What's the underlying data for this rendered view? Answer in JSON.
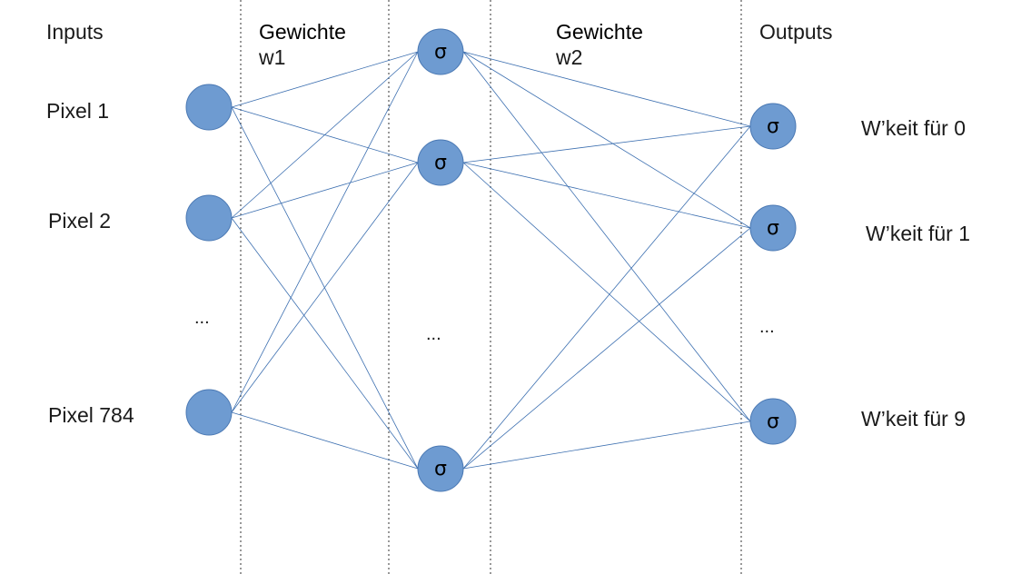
{
  "headers": {
    "inputs": "Inputs",
    "weights1_title": "Gewichte",
    "weights1_sub": "w1",
    "weights2_title": "Gewichte",
    "weights2_sub": "w2",
    "outputs": "Outputs"
  },
  "inputs": {
    "labels": [
      "Pixel 1",
      "Pixel 2",
      "Pixel 784"
    ],
    "ellipsis": "..."
  },
  "hidden": {
    "symbol": "σ",
    "ellipsis": "..."
  },
  "outputs": {
    "symbol": "σ",
    "labels": [
      "W’keit für 0",
      "W’keit für 1",
      "W’keit für 9"
    ],
    "ellipsis": "..."
  },
  "colors": {
    "node_fill": "#6e9bd1",
    "node_stroke": "#4a78b3",
    "edge": "#3c6fb0",
    "divider": "#333333"
  }
}
